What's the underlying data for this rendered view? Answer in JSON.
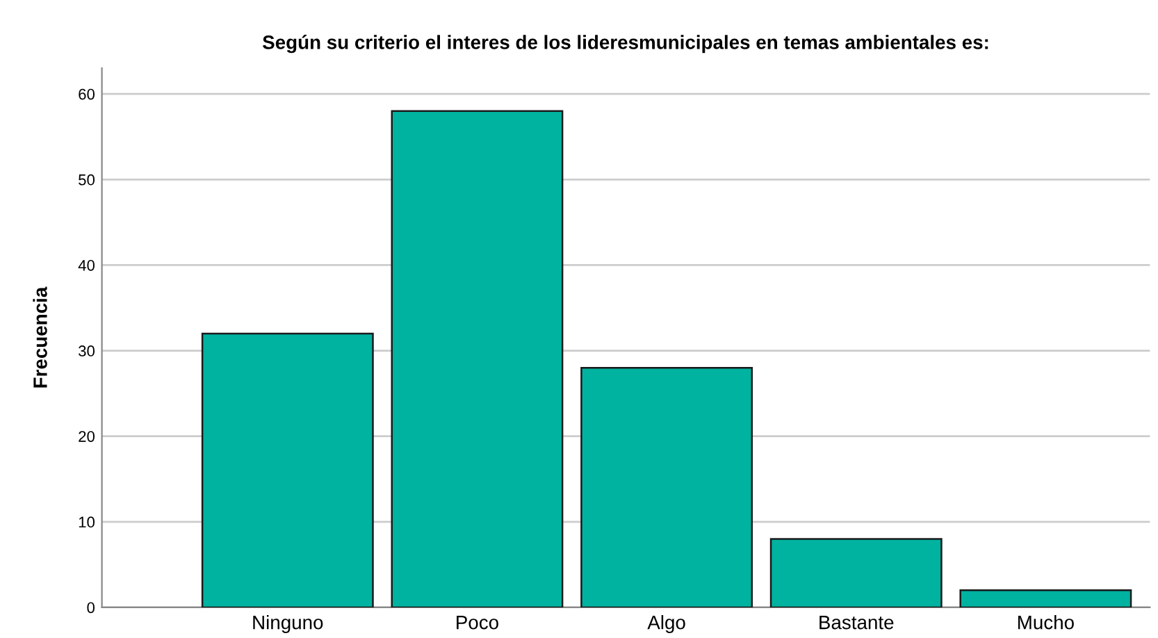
{
  "chart_data": {
    "type": "bar",
    "title": "Según su criterio el interes de los lideresmunicipales en temas ambientales es:",
    "ylabel": "Frecuencia",
    "categories": [
      "Ninguno",
      "Poco",
      "Algo",
      "Bastante",
      "Mucho"
    ],
    "values": [
      32,
      58,
      28,
      8,
      2
    ],
    "color": "#00b3a0",
    "ylim": [
      0,
      63
    ],
    "yticks": [
      0,
      10,
      20,
      30,
      40,
      50,
      60
    ],
    "grid": "y"
  }
}
